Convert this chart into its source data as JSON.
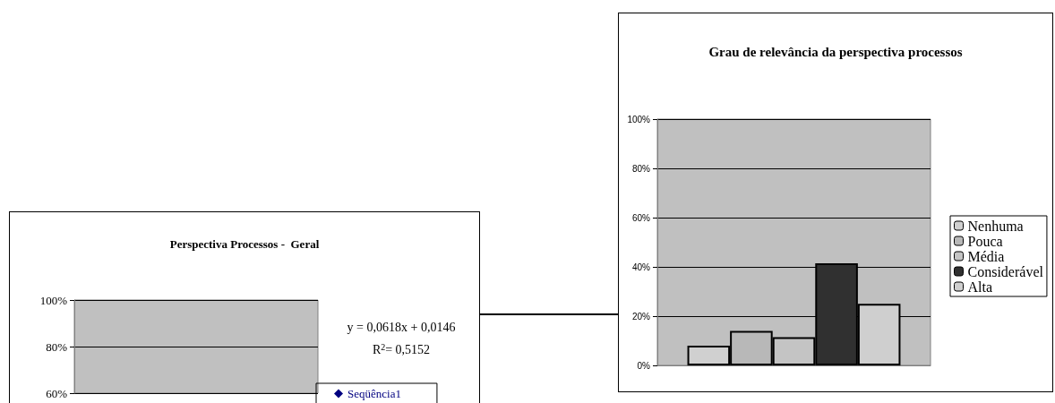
{
  "chart_data": [
    {
      "type": "other",
      "title": "Perspectiva Processos -  Geral",
      "y_categories": [
        "100%",
        "80%",
        "60%"
      ],
      "legend": "right",
      "series": [
        {
          "name": "Seqüência1",
          "color": "#000080"
        }
      ],
      "annotations": [
        "y = 0,0618x + 0,0146",
        "R$^{2}$= 0,5152"
      ]
    },
    {
      "type": "bar",
      "title": "Grau de relevância da perspectiva processos",
      "categories": [
        null
      ],
      "ylim": [
        0,
        100
      ],
      "yticks": [
        {
          "value": 0,
          "label": "0%"
        },
        {
          "value": 20,
          "label": "20%"
        },
        {
          "value": 40,
          "label": "40%"
        },
        {
          "value": 60,
          "label": "60%"
        },
        {
          "value": 80,
          "label": "80%"
        },
        {
          "value": 100,
          "label": "100%"
        }
      ],
      "grid": "y",
      "legend": "right",
      "series": [
        {
          "name": "Nenhuma",
          "color": "#d0d0d0",
          "values": [
            8
          ]
        },
        {
          "name": "Pouca",
          "color": "#b8b8b8",
          "values": [
            14
          ]
        },
        {
          "name": "Média",
          "color": "#c4c4c4",
          "values": [
            11.5
          ]
        },
        {
          "name": "Considerável",
          "color": "#303030",
          "values": [
            41.5
          ]
        },
        {
          "name": "Alta",
          "color": "#cfcfcf",
          "values": [
            25
          ]
        }
      ]
    }
  ]
}
